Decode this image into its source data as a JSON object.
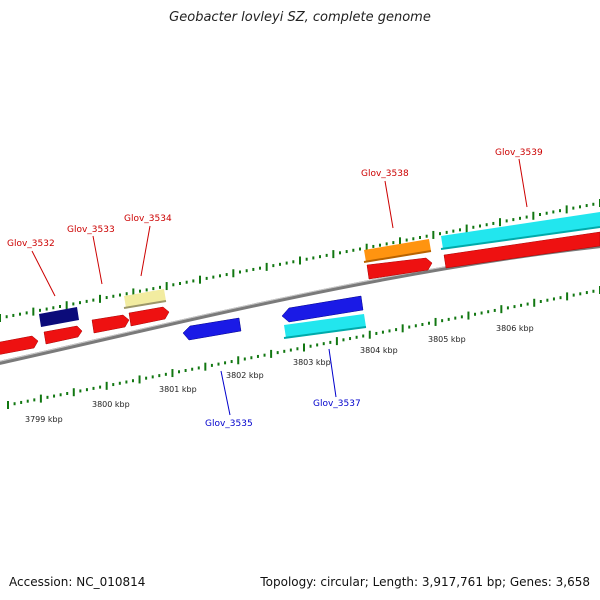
{
  "title": "Geobacter lovleyi SZ, complete genome",
  "footer": {
    "accession": "Accession: NC_010814",
    "summary": "Topology: circular; Length: 3,917,761 bp; Genes: 3,658"
  },
  "colors": {
    "backbone": "#888888",
    "cds_red": "#ee1111",
    "navy": "#0b0b7a",
    "pale_yellow": "#f2eca0",
    "blue": "#1a1ae6",
    "cyan": "#22e6ee",
    "orange": "#ff9410",
    "label_red": "#cc0000",
    "label_blue": "#0000cc",
    "tick_green": "#117711"
  },
  "scale": {
    "labels": [
      "3799 kbp",
      "3800 kbp",
      "3801 kbp",
      "3802 kbp",
      "3803 kbp",
      "3804 kbp",
      "3805 kbp",
      "3806 kbp"
    ]
  },
  "genes": [
    {
      "name": "Glov_3532",
      "color": "label_red"
    },
    {
      "name": "Glov_3533",
      "color": "label_red"
    },
    {
      "name": "Glov_3534",
      "color": "label_red"
    },
    {
      "name": "Glov_3535",
      "color": "label_blue"
    },
    {
      "name": "Glov_3537",
      "color": "label_blue"
    },
    {
      "name": "Glov_3538",
      "color": "label_red"
    },
    {
      "name": "Glov_3539",
      "color": "label_red"
    }
  ]
}
